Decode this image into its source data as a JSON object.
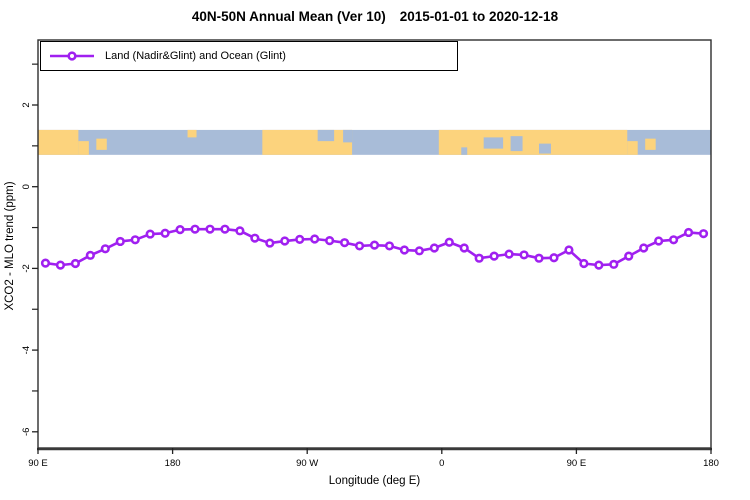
{
  "title": {
    "text": "40N-50N Annual Mean (Ver 10)",
    "date_range": "2015-01-01 to 2020-12-18"
  },
  "legend": {
    "label": "Land (Nadir&Glint) and Ocean (Glint)"
  },
  "axes": {
    "x": {
      "label": "Longitude (deg E)",
      "ticks": [
        {
          "value": 90,
          "label": "90 E"
        },
        {
          "value": 180,
          "label": "180"
        },
        {
          "value": 270,
          "label": "90 W"
        },
        {
          "value": 360,
          "label": "0"
        },
        {
          "value": 450,
          "label": "90 E"
        },
        {
          "value": 540,
          "label": "180"
        }
      ]
    },
    "y": {
      "label": "XCO2 - MLO trend (ppm)",
      "ticks": [
        {
          "value": 2,
          "label": "2"
        },
        {
          "value": 0,
          "label": "0"
        },
        {
          "value": -2,
          "label": "-2"
        },
        {
          "value": -4,
          "label": "-4"
        },
        {
          "value": -6,
          "label": "-6"
        }
      ],
      "minor_values": [
        3,
        1,
        -1,
        -3,
        -5
      ]
    }
  },
  "chart_data": {
    "type": "line",
    "title": "40N-50N Annual Mean (Ver 10)  2015-01-01 to 2020-12-18",
    "series_name": "Land (Nadir&Glint) and Ocean (Glint)",
    "xlabel": "Longitude (deg E)",
    "ylabel": "XCO2 - MLO trend (ppm)",
    "xlim": [
      90,
      540
    ],
    "ylim": [
      -6.4,
      3.6
    ],
    "grid": false,
    "legend_position": "top-left",
    "marker": "open-circle",
    "line_color": "#a020f0",
    "x": [
      95,
      105,
      115,
      125,
      135,
      145,
      155,
      165,
      175,
      185,
      195,
      205,
      215,
      225,
      235,
      245,
      255,
      265,
      275,
      285,
      295,
      305,
      315,
      325,
      335,
      345,
      355,
      365,
      375,
      385,
      395,
      405,
      415,
      425,
      435,
      445,
      455,
      465,
      475,
      485,
      495,
      505,
      515,
      525,
      535
    ],
    "values": [
      -1.87,
      -1.92,
      -1.88,
      -1.68,
      -1.52,
      -1.34,
      -1.3,
      -1.16,
      -1.14,
      -1.05,
      -1.04,
      -1.04,
      -1.04,
      -1.08,
      -1.26,
      -1.38,
      -1.33,
      -1.29,
      -1.28,
      -1.32,
      -1.37,
      -1.45,
      -1.43,
      -1.45,
      -1.55,
      -1.57,
      -1.5,
      -1.36,
      -1.5,
      -1.75,
      -1.7,
      -1.65,
      -1.67,
      -1.75,
      -1.74,
      -1.55,
      -1.88,
      -1.92,
      -1.9,
      -1.7,
      -1.5,
      -1.33,
      -1.3,
      -1.12,
      -1.15
    ]
  },
  "map_strip": {
    "description": "world coastline band 40N-50N drawn across plot",
    "y_ppm": [
      0.78,
      1.39
    ],
    "ocean_color": "#a8bcd8",
    "land_color": "#fcd37d",
    "land_full": [
      [
        90,
        117
      ],
      [
        240,
        300
      ],
      [
        358,
        484
      ]
    ],
    "land_partial": [
      {
        "lon": [
          117,
          124
        ],
        "y": [
          0.45,
          1.0
        ]
      },
      {
        "lon": [
          129,
          136
        ],
        "y": [
          0.35,
          0.8
        ]
      },
      {
        "lon": [
          190,
          196
        ],
        "y": [
          0.0,
          0.3
        ]
      },
      {
        "lon": [
          484,
          491
        ],
        "y": [
          0.45,
          1.0
        ]
      },
      {
        "lon": [
          496,
          503
        ],
        "y": [
          0.35,
          0.8
        ]
      }
    ],
    "ocean_patches": [
      {
        "lon": [
          277,
          288
        ],
        "y": [
          0.0,
          0.45
        ]
      },
      {
        "lon": [
          294,
          300
        ],
        "y": [
          0.0,
          0.5
        ]
      },
      {
        "lon": [
          373,
          377
        ],
        "y": [
          0.7,
          1.0
        ]
      },
      {
        "lon": [
          388,
          401
        ],
        "y": [
          0.3,
          0.75
        ]
      },
      {
        "lon": [
          406,
          414
        ],
        "y": [
          0.25,
          0.85
        ]
      },
      {
        "lon": [
          425,
          433
        ],
        "y": [
          0.55,
          0.95
        ]
      }
    ]
  },
  "colors": {
    "series": "#a020f0",
    "axis": "#333333",
    "background": "#ffffff"
  }
}
